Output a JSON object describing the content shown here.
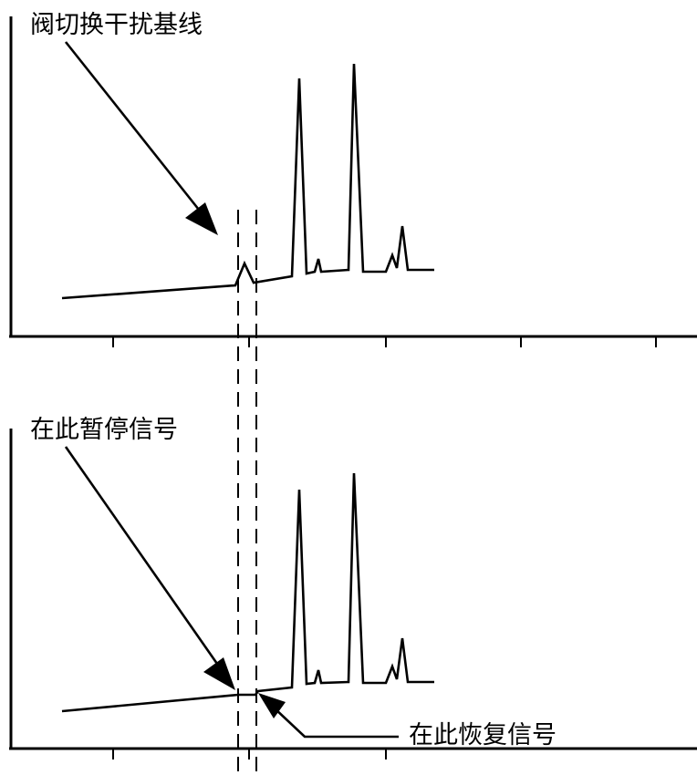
{
  "annotations": {
    "top_label": "阀切换干扰基线",
    "bottom_pause_label": "在此暂停信号",
    "bottom_resume_label": "在此恢复信号"
  },
  "style": {
    "line_color": "#000000",
    "background_color": "#ffffff"
  }
}
